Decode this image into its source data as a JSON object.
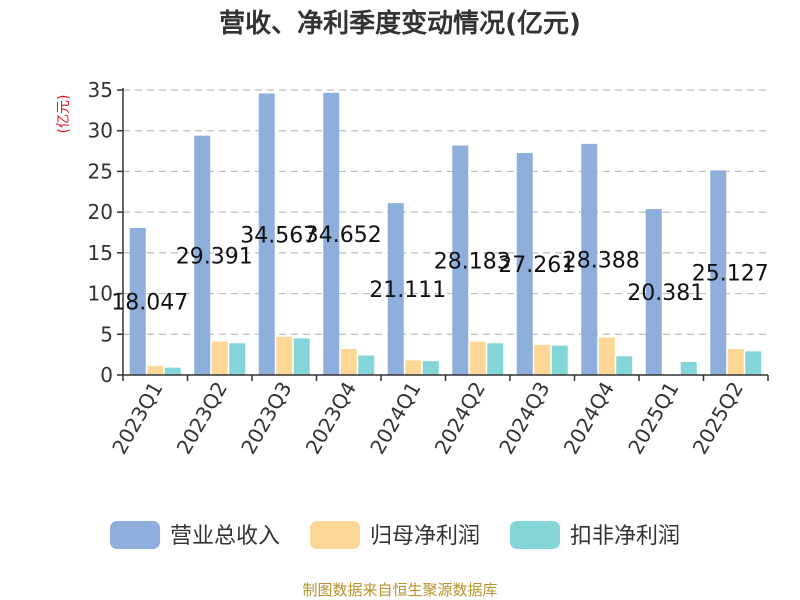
{
  "chart_data": {
    "type": "bar",
    "title": "营收、净利季度变动情况(亿元)",
    "ylabel": "(亿元)",
    "ylim": [
      0,
      35
    ],
    "yticks": [
      0,
      5,
      10,
      15,
      20,
      25,
      30,
      35
    ],
    "grid": true,
    "legend_position": "bottom",
    "categories": [
      "2023Q1",
      "2023Q2",
      "2023Q3",
      "2023Q4",
      "2024Q1",
      "2024Q2",
      "2024Q3",
      "2024Q4",
      "2025Q1",
      "2025Q2"
    ],
    "series": [
      {
        "name": "营业总收入",
        "color": "#8eafdc",
        "values": [
          18.047,
          29.391,
          34.567,
          34.652,
          21.111,
          28.183,
          27.261,
          28.388,
          20.381,
          25.127
        ],
        "show_labels": true
      },
      {
        "name": "归母净利润",
        "color": "#fdd795",
        "values": [
          1.1,
          4.1,
          4.7,
          3.2,
          1.8,
          4.1,
          3.7,
          4.6,
          null,
          3.2
        ],
        "show_labels": false
      },
      {
        "name": "扣非净利润",
        "color": "#84d5d8",
        "values": [
          0.9,
          3.9,
          4.5,
          2.4,
          1.7,
          3.9,
          3.6,
          2.3,
          1.6,
          2.9
        ],
        "show_labels": false
      }
    ],
    "data_labels": [
      "18.047",
      "29.391",
      "34.567",
      "34.652",
      "21.111",
      "28.183",
      "27.261",
      "28.388",
      "20.381",
      "25.127"
    ]
  },
  "footer": {
    "source": "制图数据来自恒生聚源数据库"
  }
}
